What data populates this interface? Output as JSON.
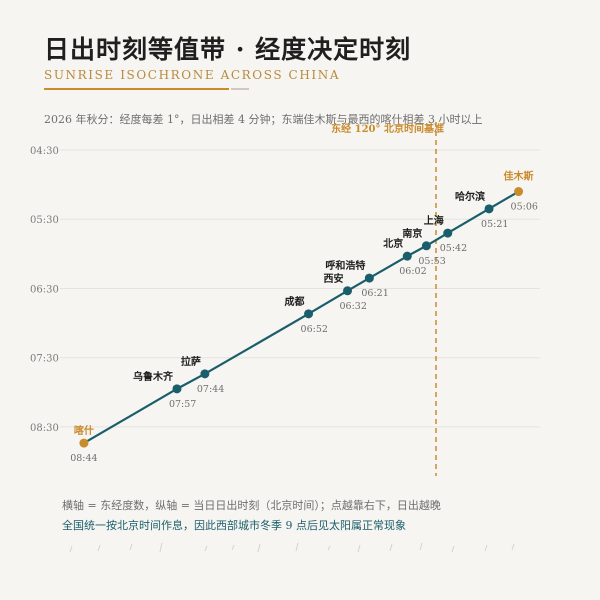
{
  "header": {
    "title": "日出时刻等值带 · 经度决定时刻",
    "subtitle": "SUNRISE ISOCHRONE ACROSS CHINA",
    "note": "2026 年秋分：经度每差 1°，日出相差 4 分钟；东端佳木斯与最西的喀什相差 3 小时以上"
  },
  "footer": {
    "legend": "横轴 = 东经度数，纵轴 = 当日日出时刻（北京时间）；点越靠右下，日出越晚",
    "remark": "全国统一按北京时间作息，因此西部城市冬季 9 点后见太阳属正常现象"
  },
  "colors": {
    "line": "#1b5e6b",
    "accent": "#c98b2e",
    "grid": "#e3e3e0"
  },
  "chart_data": {
    "type": "line",
    "title": "日出时刻等值带 · 经度决定时刻",
    "xlabel": "东经度数",
    "ylabel": "日出时刻（北京时间）",
    "xlim": [
      73,
      133
    ],
    "ylim_minutes": [
      270,
      530
    ],
    "y_ticks": [
      "04:30",
      "05:30",
      "06:30",
      "07:30",
      "08:30"
    ],
    "reference_line": {
      "x": 120,
      "label": "东经 120° 北京时间基准"
    },
    "points": [
      {
        "city": "喀什",
        "longitude": 75.99,
        "sunrise": "08:44",
        "highlight": true
      },
      {
        "city": "乌鲁木齐",
        "longitude": 87.62,
        "sunrise": "07:57"
      },
      {
        "city": "拉萨",
        "longitude": 91.11,
        "sunrise": "07:44"
      },
      {
        "city": "成都",
        "longitude": 104.07,
        "sunrise": "06:52"
      },
      {
        "city": "西安",
        "longitude": 108.94,
        "sunrise": "06:32"
      },
      {
        "city": "呼和浩特",
        "longitude": 111.67,
        "sunrise": "06:21"
      },
      {
        "city": "北京",
        "longitude": 116.41,
        "sunrise": "06:02"
      },
      {
        "city": "南京",
        "longitude": 118.8,
        "sunrise": "05:53"
      },
      {
        "city": "上海",
        "longitude": 121.47,
        "sunrise": "05:42"
      },
      {
        "city": "哈尔滨",
        "longitude": 126.63,
        "sunrise": "05:21"
      },
      {
        "city": "佳木斯",
        "longitude": 130.32,
        "sunrise": "05:06",
        "highlight": true
      }
    ]
  }
}
